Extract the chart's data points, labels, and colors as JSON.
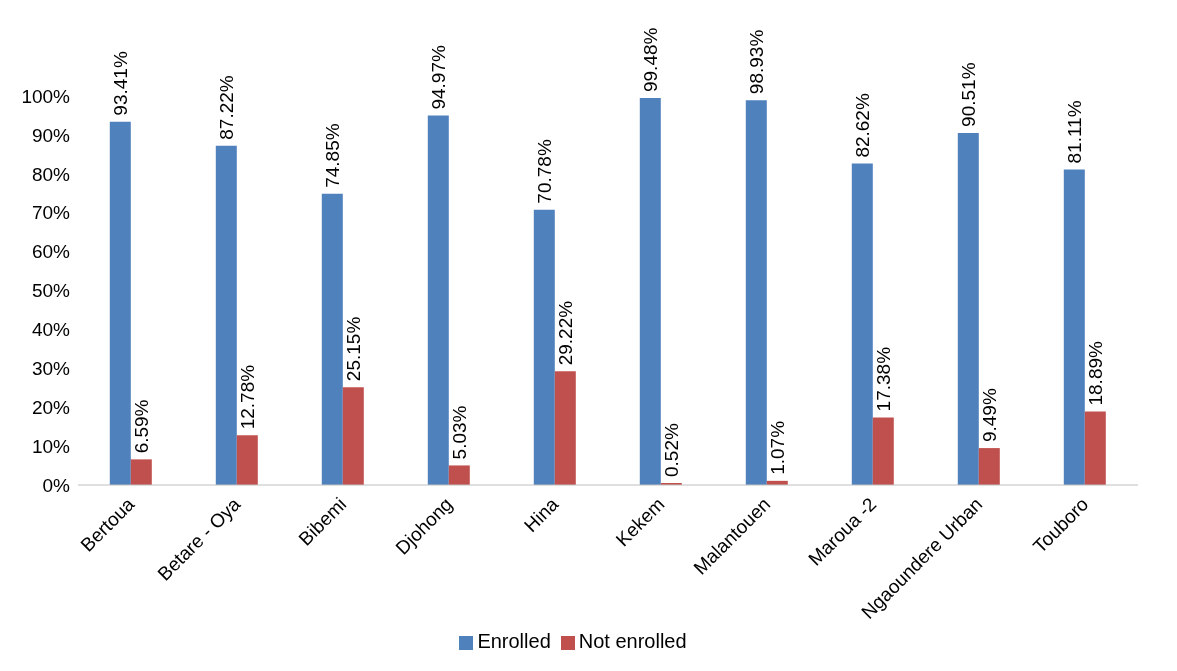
{
  "chart_data": {
    "type": "bar",
    "categories": [
      "Bertoua",
      "Betare - Oya",
      "Bibemi",
      "Djohong",
      "Hina",
      "Kekem",
      "Malantouen",
      "Maroua -2",
      "Ngaoundere Urban",
      "Touboro"
    ],
    "series": [
      {
        "name": "Enrolled",
        "color": "#4f81bd",
        "values": [
          93.41,
          87.22,
          74.85,
          94.97,
          70.78,
          99.48,
          98.93,
          82.62,
          90.51,
          81.11
        ],
        "value_labels": [
          "93.41%",
          "87.22%",
          "74.85%",
          "94.97%",
          "70.78%",
          "99.48%",
          "98.93%",
          "82.62%",
          "90.51%",
          "81.11%"
        ]
      },
      {
        "name": "Not enrolled",
        "color": "#c0504d",
        "values": [
          6.59,
          12.78,
          25.15,
          5.03,
          29.22,
          0.52,
          1.07,
          17.38,
          9.49,
          18.89
        ],
        "value_labels": [
          "6.59%",
          "12.78%",
          "25.15%",
          "5.03%",
          "29.22%",
          "0.52%",
          "1.07%",
          "17.38%",
          "9.49%",
          "18.89%"
        ]
      }
    ],
    "ylim": [
      0,
      100
    ],
    "yticks": [
      {
        "value": 0,
        "label": "0%"
      },
      {
        "value": 10,
        "label": "10%"
      },
      {
        "value": 20,
        "label": "20%"
      },
      {
        "value": 30,
        "label": "30%"
      },
      {
        "value": 40,
        "label": "40%"
      },
      {
        "value": 50,
        "label": "50%"
      },
      {
        "value": 60,
        "label": "60%"
      },
      {
        "value": 70,
        "label": "70%"
      },
      {
        "value": 80,
        "label": "80%"
      },
      {
        "value": 90,
        "label": "90%"
      },
      {
        "value": 100,
        "label": "100%"
      }
    ],
    "grid": false,
    "legend": "bottom"
  }
}
